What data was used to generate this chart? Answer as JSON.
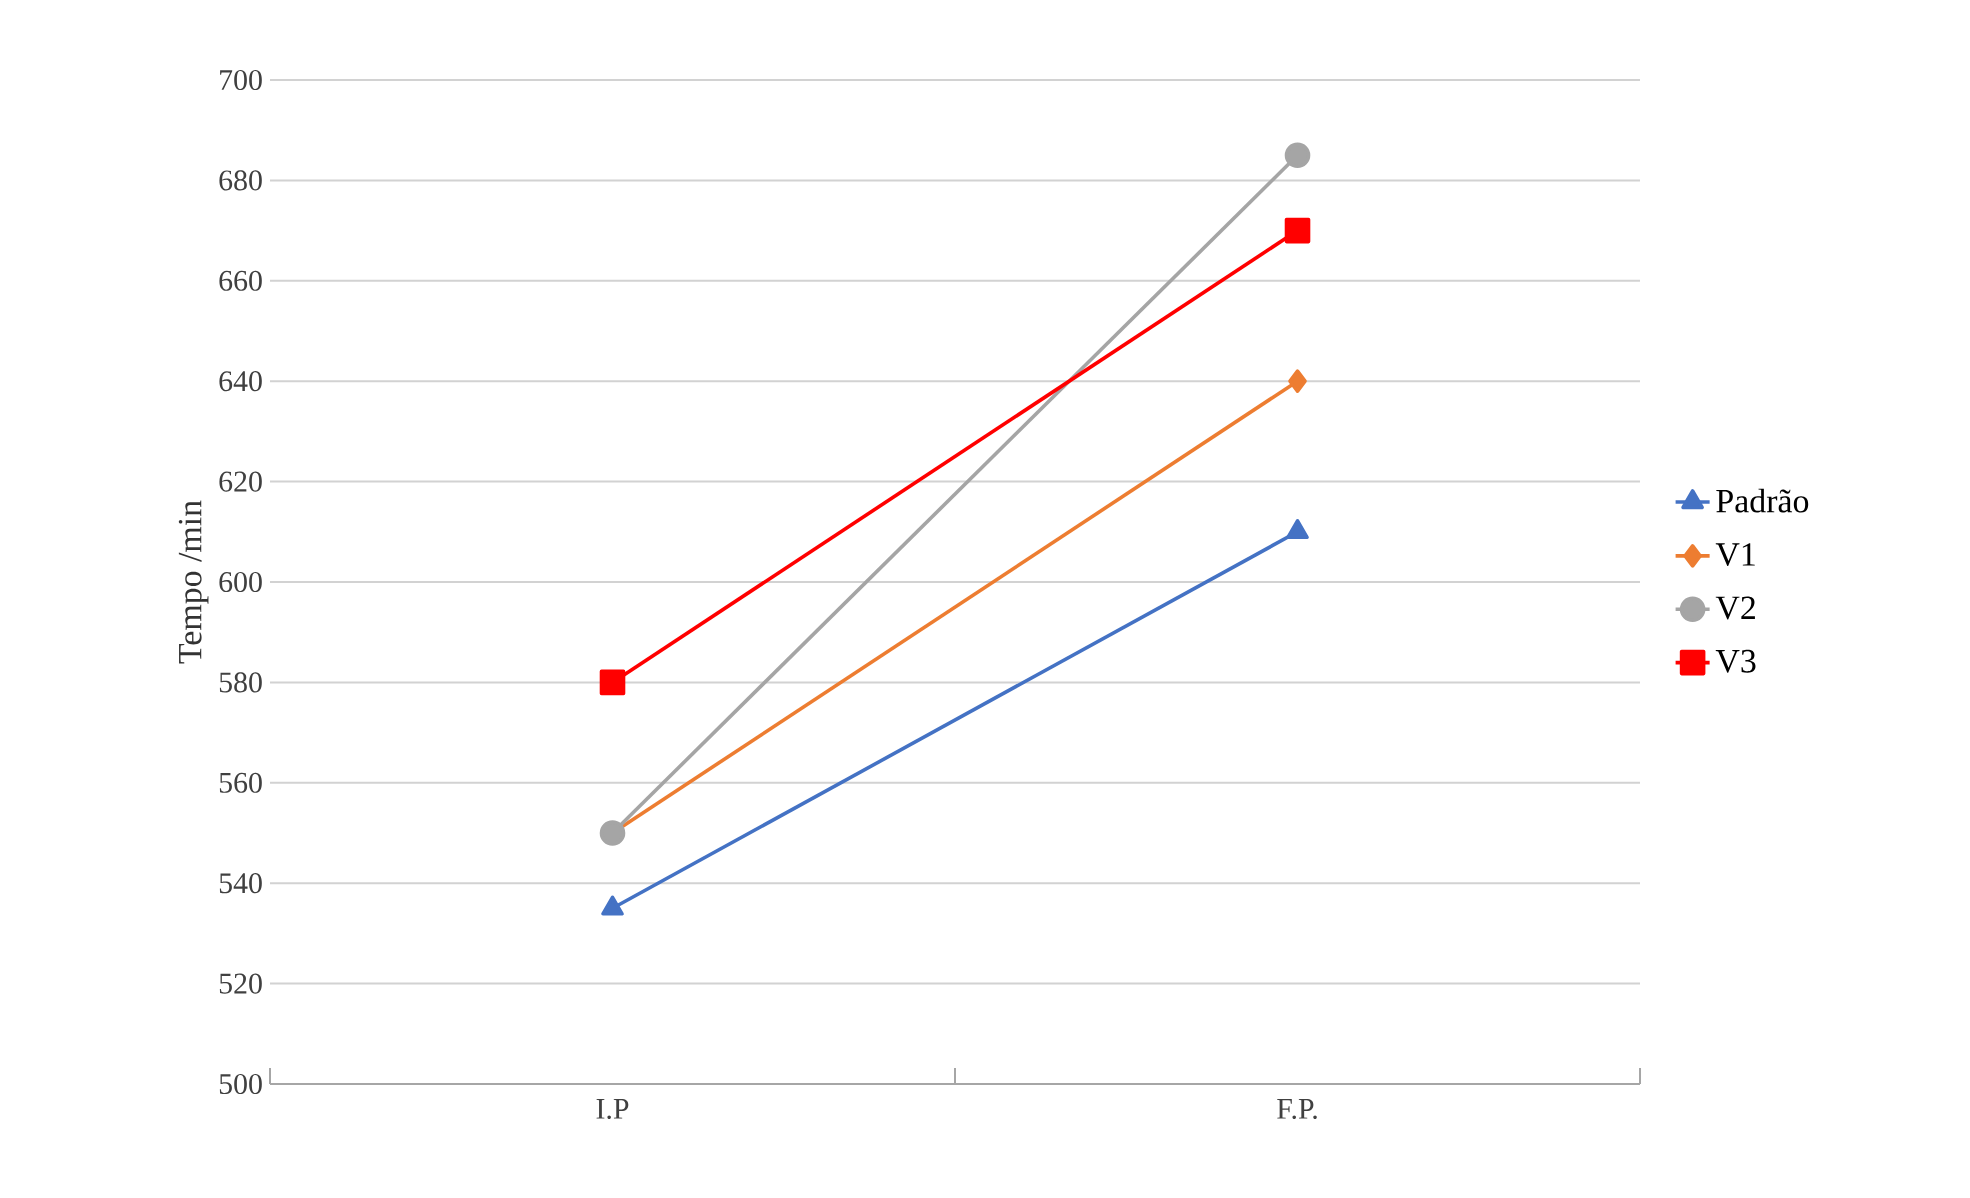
{
  "chart_data": {
    "type": "line",
    "ylabel": "Tempo /min",
    "categories": [
      "I.P",
      "F.P."
    ],
    "series": [
      {
        "name": "Padrão",
        "color": "#4472c4",
        "marker": "triangle",
        "values": [
          535,
          610
        ]
      },
      {
        "name": "V1",
        "color": "#ed7d31",
        "marker": "diamond",
        "values": [
          550,
          640
        ]
      },
      {
        "name": "V2",
        "color": "#a5a5a5",
        "marker": "circle",
        "values": [
          550,
          685
        ]
      },
      {
        "name": "V3",
        "color": "#ff0000",
        "marker": "square",
        "values": [
          580,
          670
        ]
      }
    ],
    "ylim": [
      500,
      700
    ],
    "yticks": [
      500,
      520,
      540,
      560,
      580,
      600,
      620,
      640,
      660,
      680,
      700
    ],
    "grid": "y",
    "legend": "right",
    "line_style": "solid"
  }
}
